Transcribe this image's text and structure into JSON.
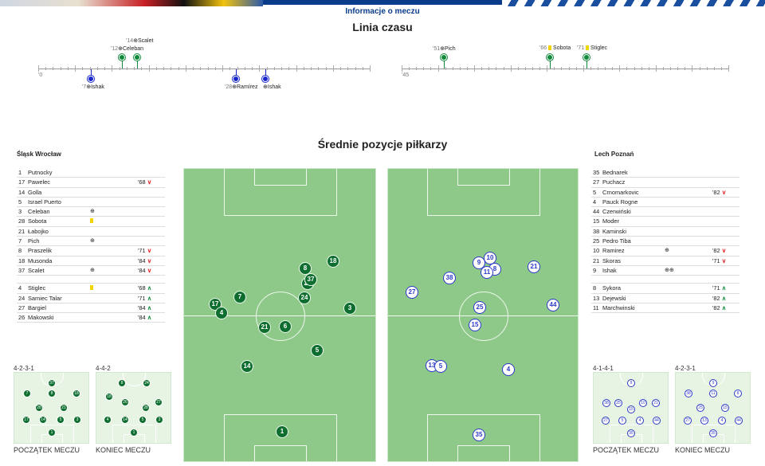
{
  "header": {
    "info_label": "Informacje o meczu"
  },
  "timeline": {
    "title": "Linia czasu",
    "first_half_start": "'0",
    "second_half_start": "'45",
    "events": [
      {
        "minute": "'14",
        "player": "Scalet",
        "team": "home",
        "type": "goal"
      },
      {
        "minute": "'12",
        "player": "Celeban",
        "team": "home",
        "type": "goal"
      },
      {
        "minute": "'7",
        "player": "Ishak",
        "team": "away",
        "type": "goal"
      },
      {
        "minute": "'28",
        "player": "Ramírez",
        "team": "away",
        "type": "goal"
      },
      {
        "minute": "",
        "player": "Ishak",
        "team": "away",
        "type": "goal"
      },
      {
        "minute": "'51",
        "player": "Pich",
        "team": "home",
        "type": "goal"
      },
      {
        "minute": "'66",
        "player": "Sobota",
        "team": "home",
        "type": "card"
      },
      {
        "minute": "'71",
        "player": "Stiglec",
        "team": "home",
        "type": "card"
      }
    ]
  },
  "avg_positions": {
    "title": "Średnie pozycje piłkarzy"
  },
  "home": {
    "name": "Śląsk Wrocław",
    "starters": [
      {
        "num": "1",
        "name": "Putnocky",
        "event": "",
        "sub": ""
      },
      {
        "num": "17",
        "name": "Pawelec",
        "event": "",
        "sub": "'68"
      },
      {
        "num": "14",
        "name": "Golla",
        "event": "",
        "sub": ""
      },
      {
        "num": "5",
        "name": "Israel Puerto",
        "event": "",
        "sub": ""
      },
      {
        "num": "3",
        "name": "Celeban",
        "event": "⊕",
        "sub": ""
      },
      {
        "num": "28",
        "name": "Sobota",
        "event": "card",
        "sub": ""
      },
      {
        "num": "21",
        "name": "Łabojko",
        "event": "",
        "sub": ""
      },
      {
        "num": "7",
        "name": "Pich",
        "event": "⊕",
        "sub": ""
      },
      {
        "num": "8",
        "name": "Praszelik",
        "event": "",
        "sub": "'71"
      },
      {
        "num": "18",
        "name": "Musonda",
        "event": "",
        "sub": "'84"
      },
      {
        "num": "37",
        "name": "Scalet",
        "event": "⊕",
        "sub": "'84"
      }
    ],
    "subs": [
      {
        "num": "4",
        "name": "Stiglec",
        "event": "card",
        "sub": "'68"
      },
      {
        "num": "24",
        "name": "Samiec Talar",
        "event": "",
        "sub": "'71"
      },
      {
        "num": "27",
        "name": "Bargiel",
        "event": "",
        "sub": "'84"
      },
      {
        "num": "26",
        "name": "Makowski",
        "event": "",
        "sub": "'84"
      }
    ],
    "formation_start": "4-2-3-1",
    "formation_end": "4-4-2"
  },
  "away": {
    "name": "Lech Poznań",
    "starters": [
      {
        "num": "35",
        "name": "Bednarek",
        "event": "",
        "sub": ""
      },
      {
        "num": "27",
        "name": "Puchacz",
        "event": "",
        "sub": ""
      },
      {
        "num": "5",
        "name": "Crnomarkovic",
        "event": "",
        "sub": "'82"
      },
      {
        "num": "4",
        "name": "Pauck Rogne",
        "event": "",
        "sub": ""
      },
      {
        "num": "44",
        "name": "Czerwiński",
        "event": "",
        "sub": ""
      },
      {
        "num": "15",
        "name": "Moder",
        "event": "",
        "sub": ""
      },
      {
        "num": "38",
        "name": "Kaminski",
        "event": "",
        "sub": ""
      },
      {
        "num": "25",
        "name": "Pedro Tiba",
        "event": "",
        "sub": ""
      },
      {
        "num": "10",
        "name": "Ramirez",
        "event": "⊕",
        "sub": "'82"
      },
      {
        "num": "21",
        "name": "Skoras",
        "event": "",
        "sub": "'71"
      },
      {
        "num": "9",
        "name": "Ishak",
        "event": "⊕⊕",
        "sub": ""
      }
    ],
    "subs": [
      {
        "num": "8",
        "name": "Sykora",
        "event": "",
        "sub": "'71"
      },
      {
        "num": "13",
        "name": "Dejewski",
        "event": "",
        "sub": "'82"
      },
      {
        "num": "11",
        "name": "Marchwinski",
        "event": "",
        "sub": "'82"
      }
    ],
    "formation_start": "4-1-4-1",
    "formation_end": "4-2-3-1"
  },
  "captions": {
    "start": "POCZĄTEK MECZU",
    "end": "KONIEC MECZU"
  },
  "colors": {
    "home": "#0e6e30",
    "away": "#2b39c9",
    "pitch": "#8fc98a"
  }
}
